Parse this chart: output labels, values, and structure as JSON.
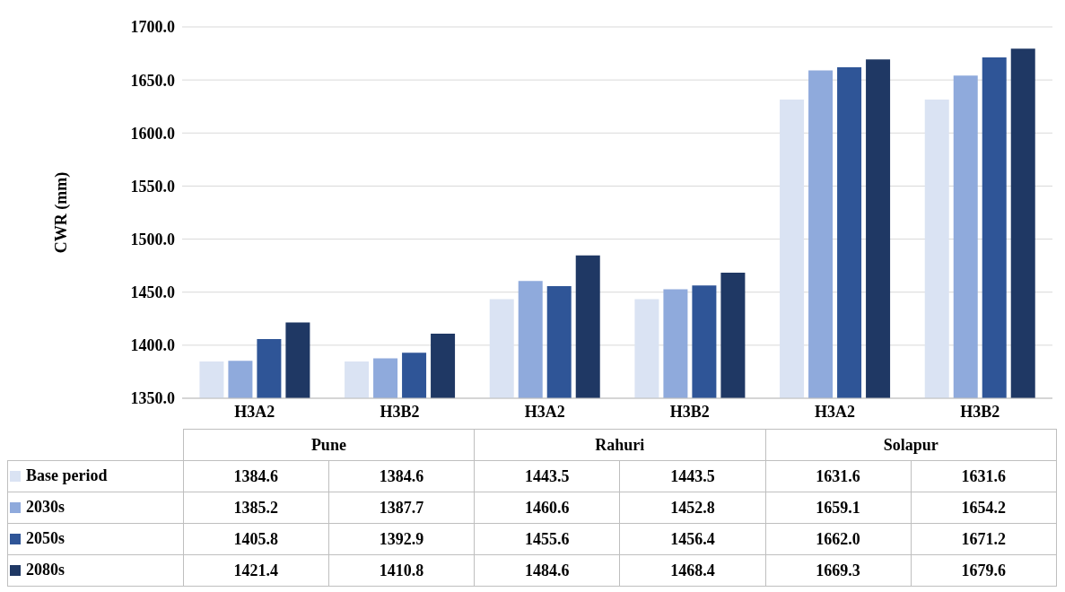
{
  "chart_data": {
    "type": "bar",
    "ylabel": "CWR (mm)",
    "categories": [
      "H3A2",
      "H3B2",
      "H3A2",
      "H3B2",
      "H3A2",
      "H3B2"
    ],
    "annotations": [
      "Pune",
      "Rahuri",
      "Solapur"
    ],
    "series": [
      {
        "name": "Base period",
        "color": "#dae3f3",
        "values": [
          1384.6,
          1384.6,
          1443.5,
          1443.5,
          1631.6,
          1631.6
        ],
        "value_labels": [
          "1384.6",
          "1384.6",
          "1443.5",
          "1443.5",
          "1631.6",
          "1631.6"
        ]
      },
      {
        "name": "2030s",
        "color": "#8faadc",
        "values": [
          1385.2,
          1387.7,
          1460.6,
          1452.8,
          1659.1,
          1654.2
        ],
        "value_labels": [
          "1385.2",
          "1387.7",
          "1460.6",
          "1452.8",
          "1659.1",
          "1654.2"
        ]
      },
      {
        "name": "2050s",
        "color": "#2f5597",
        "values": [
          1405.8,
          1392.9,
          1455.6,
          1456.4,
          1662.0,
          1671.2
        ],
        "value_labels": [
          "1405.8",
          "1392.9",
          "1455.6",
          "1456.4",
          "1662.0",
          "1671.2"
        ]
      },
      {
        "name": "2080s",
        "color": "#1f3864",
        "values": [
          1421.4,
          1410.8,
          1484.6,
          1468.4,
          1669.3,
          1679.6
        ],
        "value_labels": [
          "1421.4",
          "1410.8",
          "1484.6",
          "1468.4",
          "1669.3",
          "1679.6"
        ]
      }
    ],
    "ylim": [
      1350,
      1700
    ],
    "yticks": [
      {
        "value": 1350,
        "label": "1350.0"
      },
      {
        "value": 1400,
        "label": "1400.0"
      },
      {
        "value": 1450,
        "label": "1450.0"
      },
      {
        "value": 1500,
        "label": "1500.0"
      },
      {
        "value": 1550,
        "label": "1550.0"
      },
      {
        "value": 1600,
        "label": "1600.0"
      },
      {
        "value": 1650,
        "label": "1650.0"
      },
      {
        "value": 1700,
        "label": "1700.0"
      }
    ],
    "grid": "y",
    "legend": "bottom"
  }
}
